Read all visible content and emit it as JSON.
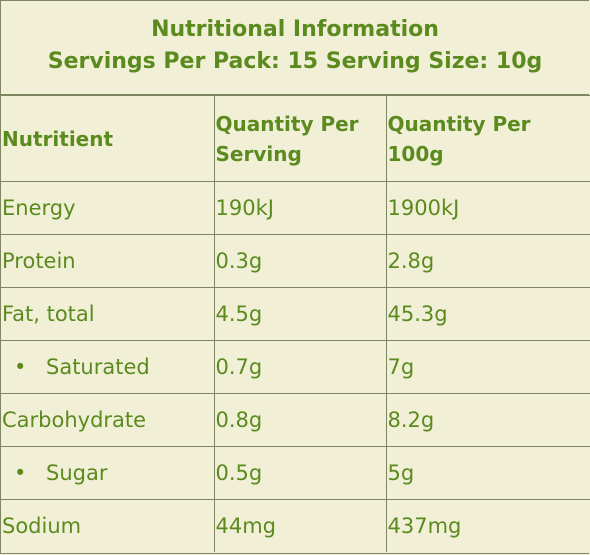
{
  "header": {
    "title": [
      "Nutritional Information",
      "Servings Per Pack: 15 Serving Size: 10g"
    ]
  },
  "table": {
    "columns": [
      "Nutritient",
      "Quantity Per Serving",
      "Quantity Per 100g"
    ],
    "rows": [
      {
        "cells": [
          "Energy",
          "190kJ",
          "1900kJ"
        ],
        "bullet": false
      },
      {
        "cells": [
          "Protein",
          "0.3g",
          "2.8g"
        ],
        "bullet": false
      },
      {
        "cells": [
          "Fat, total",
          "4.5g",
          "45.3g"
        ],
        "bullet": false
      },
      {
        "cells": [
          "Saturated",
          "0.7g",
          "7g"
        ],
        "bullet": true
      },
      {
        "cells": [
          "Carbohydrate",
          "0.8g",
          "8.2g"
        ],
        "bullet": false
      },
      {
        "cells": [
          "Sugar",
          "0.5g",
          "5g"
        ],
        "bullet": true
      },
      {
        "cells": [
          "Sodium",
          "44mg",
          "437mg"
        ],
        "bullet": false
      }
    ]
  }
}
